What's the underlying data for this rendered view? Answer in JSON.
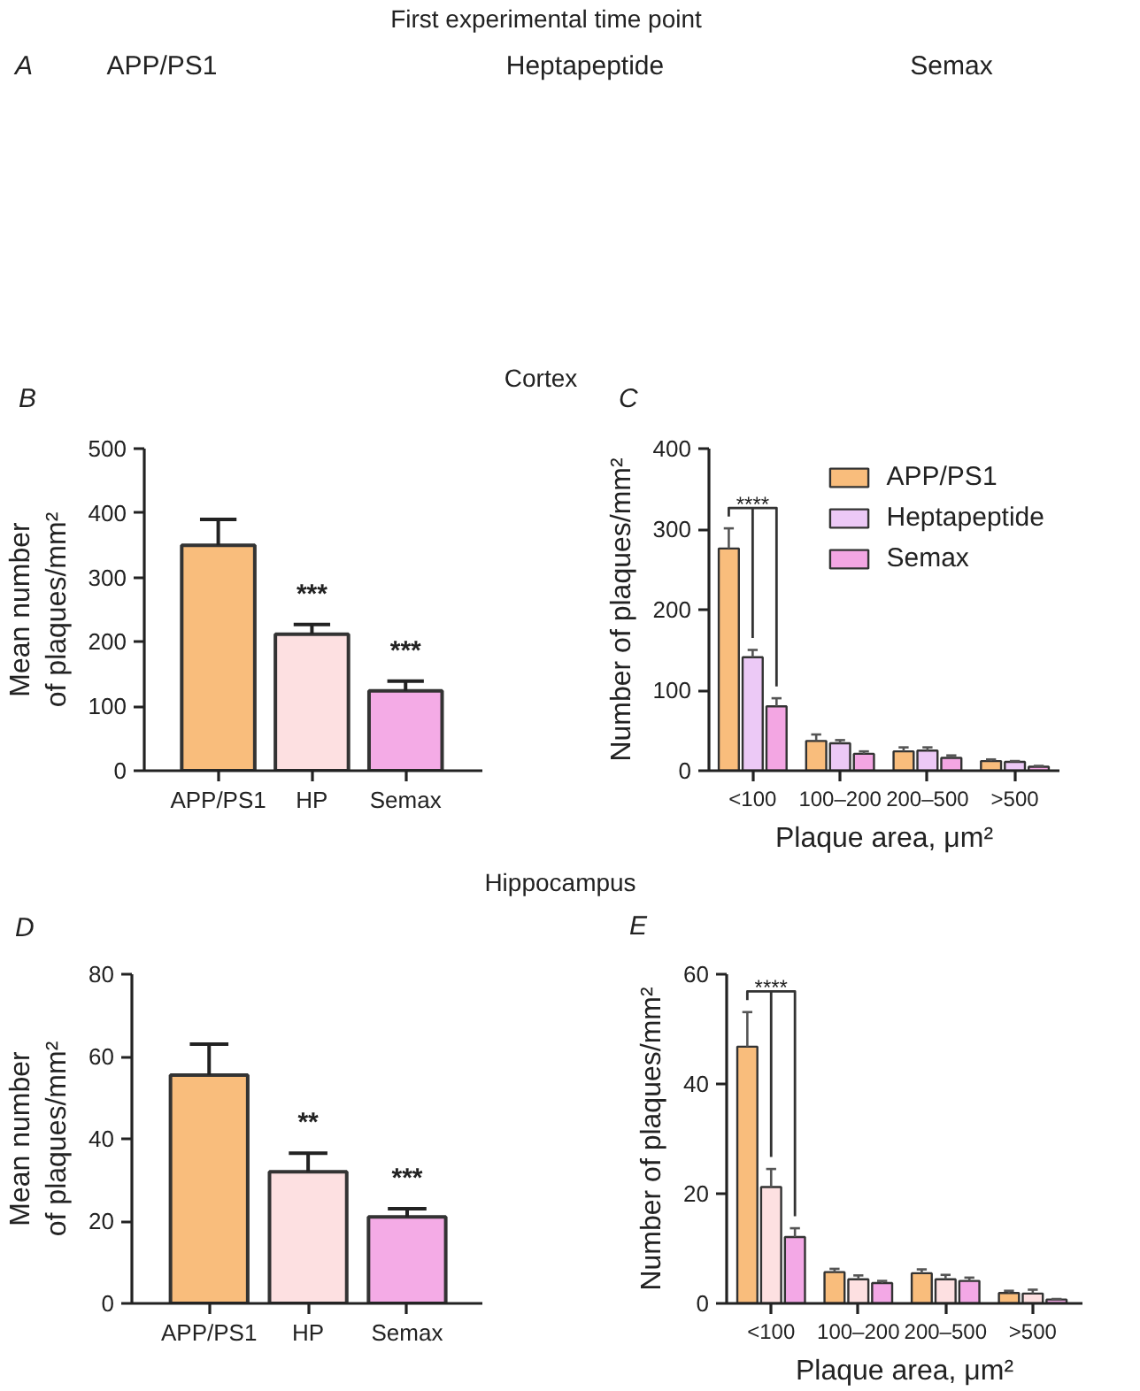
{
  "chart_data": [
    {
      "type": "other",
      "title": "First experimental time point",
      "annotations": [
        "A",
        "APP/PS1",
        "Heptapeptide",
        "Semax"
      ]
    },
    {
      "type": "other",
      "title": "Cortex"
    },
    {
      "type": "bar",
      "annotations": [
        "B",
        "***",
        "***"
      ],
      "categories": [
        "APP/PS1",
        "HP",
        "Semax"
      ],
      "values": [
        350,
        212,
        124
      ],
      "colors": [
        "#f9bd7c",
        "#fde0e1",
        "#f4abe6"
      ],
      "errors": [
        [
          350,
          390
        ],
        [
          212,
          227
        ],
        [
          124,
          139
        ]
      ],
      "ylabel": "Mean number\nof plaques/mm²",
      "ylim": [
        0,
        500
      ],
      "yticks": [
        0,
        100,
        200,
        300,
        400,
        500
      ]
    },
    {
      "type": "bar",
      "annotations": [
        "C",
        "****"
      ],
      "categories": [
        "<100",
        "100–200",
        "200–500",
        ">500"
      ],
      "series": [
        {
          "name": "APP/PS1",
          "color": "#f9bd7c",
          "values": [
            276,
            37,
            24,
            12
          ],
          "errors": [
            [
              276,
              301
            ],
            [
              37,
              45
            ],
            [
              24,
              29
            ],
            [
              12,
              14
            ]
          ]
        },
        {
          "name": "Heptapeptide",
          "color": "#ecc9f6",
          "values": [
            141,
            34,
            25,
            11
          ],
          "errors": [
            [
              141,
              150
            ],
            [
              34,
              38
            ],
            [
              25,
              29
            ],
            [
              11,
              12
            ]
          ]
        },
        {
          "name": "Semax",
          "color": "#f3a6e3",
          "values": [
            80,
            21,
            16,
            5
          ],
          "errors": [
            [
              80,
              90
            ],
            [
              21,
              24
            ],
            [
              16,
              19
            ],
            [
              5,
              6
            ]
          ]
        }
      ],
      "xlabel": "Plaque area, μm²",
      "ylabel": "Number of plaques/mm²",
      "ylim": [
        0,
        400
      ],
      "yticks": [
        0,
        100,
        200,
        300,
        400
      ],
      "legend": "top right"
    },
    {
      "type": "other",
      "title": "Hippocampus"
    },
    {
      "type": "bar",
      "annotations": [
        "D",
        "**",
        "***"
      ],
      "categories": [
        "APP/PS1",
        "HP",
        "Semax"
      ],
      "values": [
        55.5,
        32,
        21
      ],
      "colors": [
        "#f9bd7c",
        "#fde0e1",
        "#f4abe6"
      ],
      "errors": [
        [
          55.5,
          63
        ],
        [
          32,
          36.5
        ],
        [
          21,
          23
        ]
      ],
      "ylabel": "Mean number\nof plaques/mm²",
      "ylim": [
        0,
        80
      ],
      "yticks": [
        0,
        20,
        40,
        60,
        80
      ]
    },
    {
      "type": "bar",
      "annotations": [
        "E",
        "****"
      ],
      "categories": [
        "<100",
        "100–200",
        "200–500",
        ">500"
      ],
      "series": [
        {
          "color": "#f9bd7c",
          "values": [
            46.8,
            5.7,
            5.5,
            1.9
          ],
          "errors": [
            [
              46.8,
              53.1
            ],
            [
              5.7,
              6.3
            ],
            [
              5.5,
              6.2
            ],
            [
              1.9,
              2.3
            ]
          ]
        },
        {
          "color": "#fde0e1",
          "values": [
            21.2,
            4.4,
            4.4,
            1.8
          ],
          "errors": [
            [
              21.2,
              24.5
            ],
            [
              4.4,
              5.1
            ],
            [
              4.4,
              5.2
            ],
            [
              1.8,
              2.5
            ]
          ]
        },
        {
          "color": "#f3a8e6",
          "values": [
            12.1,
            3.7,
            4.1,
            0.7
          ],
          "errors": [
            [
              12.1,
              13.7
            ],
            [
              3.7,
              4.1
            ],
            [
              4.1,
              4.7
            ],
            [
              0.7,
              0.8
            ]
          ]
        }
      ],
      "xlabel": "Plaque area, μm²",
      "ylabel": "Number of plaques/mm²",
      "ylim": [
        0,
        60
      ],
      "yticks": [
        0,
        20,
        40,
        60
      ]
    }
  ]
}
